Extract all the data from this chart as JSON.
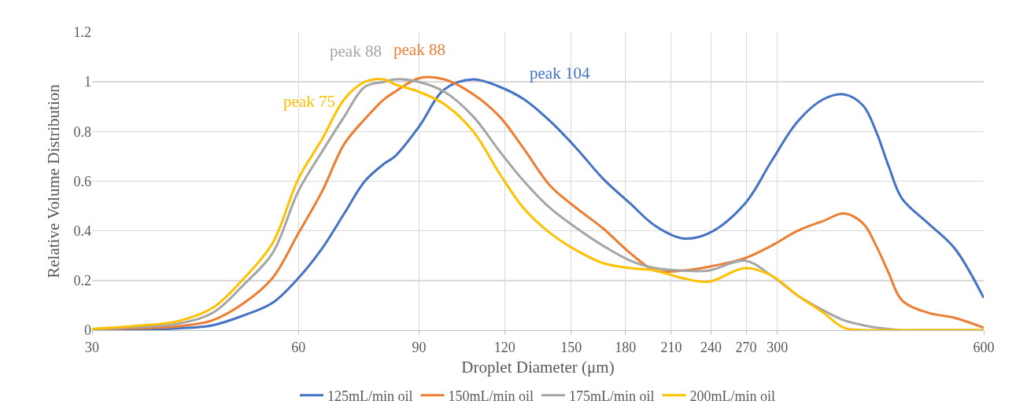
{
  "chart_data": {
    "type": "line",
    "xlabel": "Droplet Diameter (μm)",
    "ylabel": "Relative Volume Distribution",
    "x": [
      30,
      35,
      40,
      45,
      50,
      55,
      60,
      65,
      70,
      75,
      80,
      83,
      90,
      98,
      108,
      118,
      128,
      140,
      153,
      167,
      183,
      199,
      218,
      238,
      269,
      294,
      321,
      350,
      375,
      400,
      418,
      436,
      456,
      498,
      544,
      600
    ],
    "series": [
      {
        "name": "125mL/min oil",
        "color": "#4472c4",
        "values": [
          0.003,
          0.003,
          0.007,
          0.02,
          0.06,
          0.11,
          0.21,
          0.33,
          0.47,
          0.6,
          0.67,
          0.7,
          0.82,
          0.97,
          1.01,
          0.98,
          0.93,
          0.84,
          0.73,
          0.61,
          0.51,
          0.42,
          0.37,
          0.39,
          0.51,
          0.68,
          0.84,
          0.93,
          0.95,
          0.905,
          0.8,
          0.66,
          0.53,
          0.43,
          0.33,
          0.13
        ]
      },
      {
        "name": "150mL/min oil",
        "color": "#ed7d31",
        "values": [
          0.005,
          0.008,
          0.015,
          0.04,
          0.11,
          0.21,
          0.39,
          0.56,
          0.75,
          0.85,
          0.93,
          0.96,
          1.015,
          1.01,
          0.95,
          0.86,
          0.73,
          0.58,
          0.49,
          0.41,
          0.31,
          0.24,
          0.24,
          0.255,
          0.29,
          0.34,
          0.4,
          0.44,
          0.47,
          0.43,
          0.34,
          0.23,
          0.12,
          0.07,
          0.05,
          0.01
        ]
      },
      {
        "name": "175mL/min oil",
        "color": "#a5a5a5",
        "values": [
          0.005,
          0.012,
          0.026,
          0.07,
          0.185,
          0.31,
          0.56,
          0.72,
          0.86,
          0.98,
          1.0,
          1.01,
          1.0,
          0.96,
          0.86,
          0.72,
          0.6,
          0.49,
          0.41,
          0.34,
          0.28,
          0.25,
          0.24,
          0.24,
          0.28,
          0.22,
          0.14,
          0.08,
          0.04,
          0.02,
          0.01,
          0.005,
          0,
          0,
          0,
          0
        ]
      },
      {
        "name": "200mL/min oil",
        "color": "#ffc000",
        "values": [
          0.005,
          0.018,
          0.036,
          0.09,
          0.21,
          0.35,
          0.61,
          0.77,
          0.93,
          1.0,
          1.01,
          0.99,
          0.96,
          0.91,
          0.8,
          0.63,
          0.49,
          0.39,
          0.32,
          0.27,
          0.25,
          0.24,
          0.21,
          0.195,
          0.25,
          0.22,
          0.14,
          0.07,
          0.01,
          0,
          0,
          0,
          0,
          0,
          0,
          0
        ]
      }
    ],
    "annotations": [
      "peak 104",
      "peak 88",
      "peak 88",
      "peak 75"
    ],
    "log": "x",
    "xlim": [
      30,
      600
    ],
    "xticks": [
      30,
      60,
      90,
      120,
      150,
      180,
      210,
      240,
      270,
      300,
      600
    ],
    "ylim": [
      0,
      1.2
    ],
    "yticks": [
      0,
      0.2,
      0.4,
      0.6,
      0.8,
      1,
      1.2
    ],
    "grid": true,
    "legend": "bottom",
    "marker": "none",
    "line_style": "solid"
  }
}
